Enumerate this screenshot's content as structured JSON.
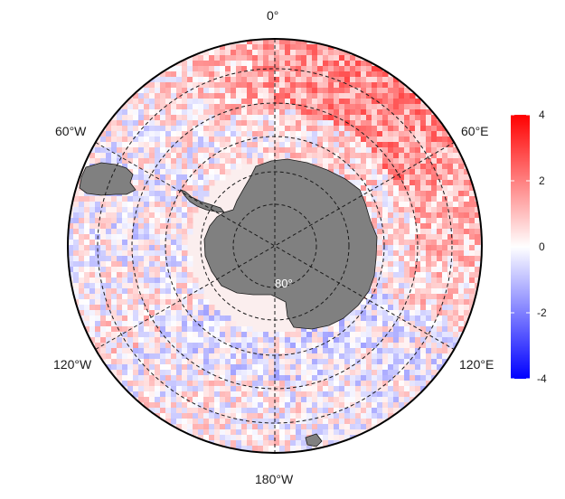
{
  "map": {
    "projection": "south-polar-stereographic",
    "graticule": {
      "meridians_deg": [
        0,
        60,
        120,
        180,
        240,
        300
      ],
      "parallels_deg_south": [
        40,
        50,
        60,
        70,
        80
      ],
      "style": "dashed"
    },
    "land_color": "#808080",
    "ocean_field": "anomaly"
  },
  "labels": {
    "lon_0": "0°",
    "lon_60e": "60°E",
    "lon_120e": "120°E",
    "lon_180": "180°W",
    "lon_120w": "120°W",
    "lon_60w": "60°W",
    "lat_80": "80°"
  },
  "legend": {
    "min": -4,
    "max": 4,
    "ticks": [
      "4",
      "2",
      "0",
      "-2",
      "-4"
    ],
    "colors": {
      "low": "#0000ff",
      "mid": "#ffffff",
      "high": "#ff0000"
    }
  }
}
